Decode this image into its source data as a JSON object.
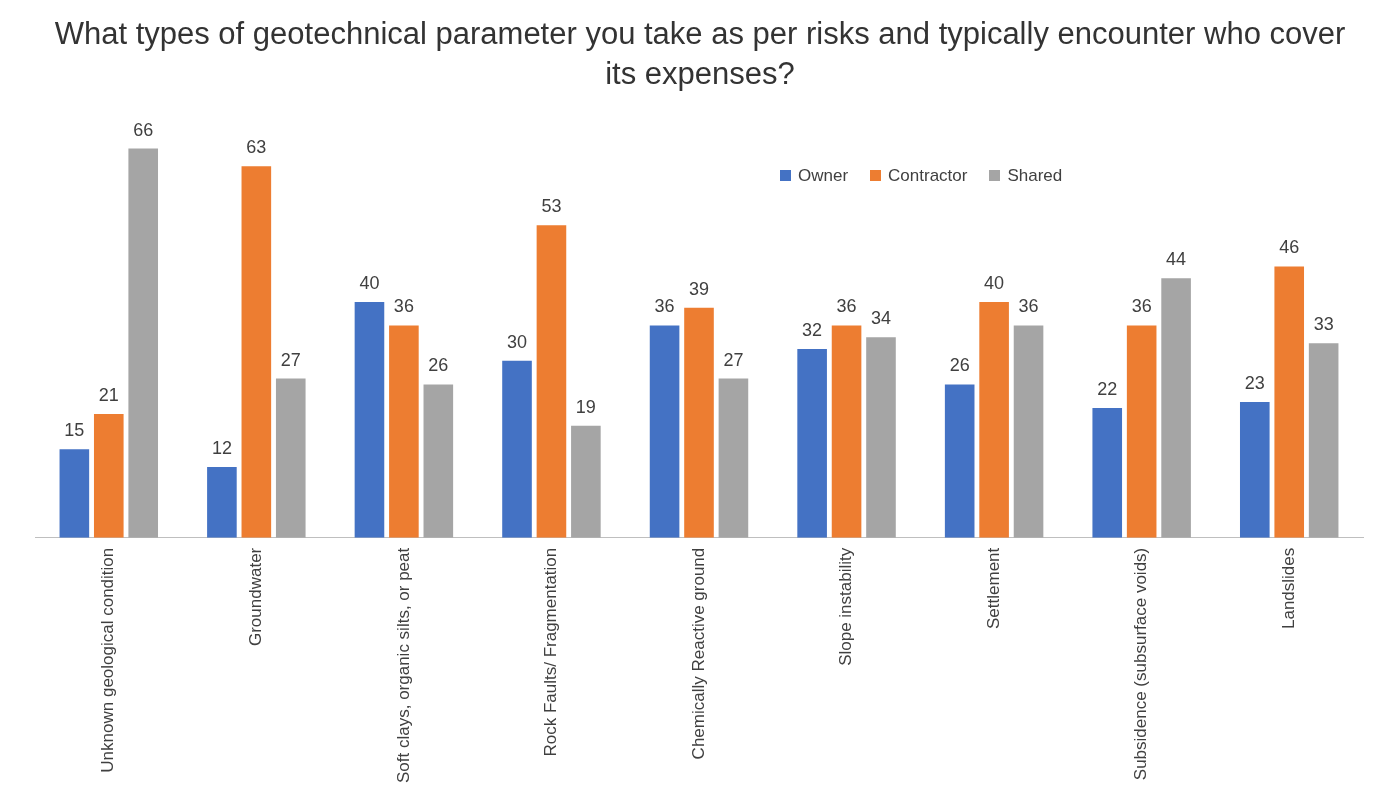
{
  "chart_data": {
    "type": "bar",
    "title": "What types of geotechnical parameter you take as per risks and typically encounter who cover its expenses?",
    "categories": [
      "Unknown geological condition",
      "Groundwater",
      "Soft clays, organic silts, or peat",
      "Rock Faults/ Fragmentation",
      "Chemically Reactive ground",
      "Slope instability",
      "Settlement",
      "Subsidence (subsurface voids)",
      "Landslides"
    ],
    "series": [
      {
        "name": "Owner",
        "color": "#4472c4",
        "values": [
          15,
          12,
          40,
          30,
          36,
          32,
          26,
          22,
          23
        ]
      },
      {
        "name": "Contractor",
        "color": "#ed7d31",
        "values": [
          21,
          63,
          36,
          53,
          39,
          36,
          40,
          36,
          46
        ]
      },
      {
        "name": "Shared",
        "color": "#a5a5a5",
        "values": [
          66,
          27,
          26,
          19,
          27,
          34,
          36,
          44,
          33
        ]
      }
    ],
    "data_labels": true,
    "grid": false,
    "legend": "top right"
  }
}
